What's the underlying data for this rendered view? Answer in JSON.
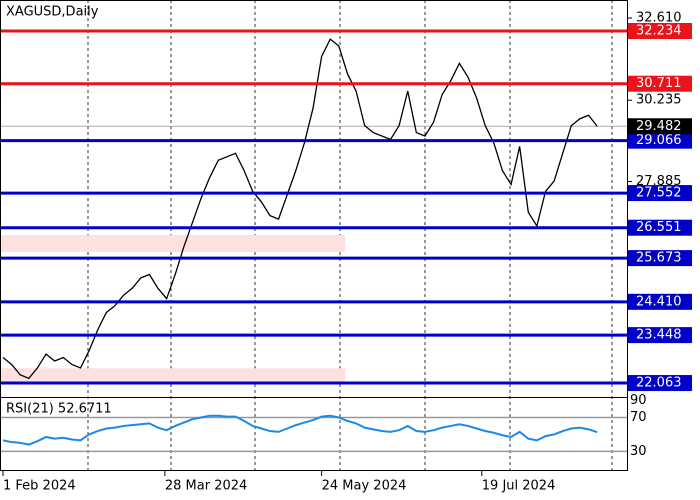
{
  "chart_data": {
    "type": "line",
    "title": "XAGUSD,Daily",
    "series": [
      {
        "name": "XAGUSD",
        "color": "#000000",
        "values": [
          22.8,
          22.6,
          22.3,
          22.2,
          22.5,
          22.9,
          22.7,
          22.8,
          22.6,
          22.5,
          23.0,
          23.6,
          24.1,
          24.3,
          24.6,
          24.8,
          25.1,
          25.2,
          24.8,
          24.5,
          25.2,
          26.0,
          26.7,
          27.4,
          28.0,
          28.5,
          28.6,
          28.7,
          28.2,
          27.6,
          27.3,
          26.9,
          26.8,
          27.5,
          28.2,
          29.0,
          30.0,
          31.5,
          32.0,
          31.8,
          31.0,
          30.5,
          29.5,
          29.3,
          29.2,
          29.1,
          29.5,
          30.5,
          29.3,
          29.2,
          29.6,
          30.4,
          30.8,
          31.3,
          30.9,
          30.3,
          29.5,
          29.0,
          28.2,
          27.8,
          28.9,
          27.0,
          26.6,
          27.6,
          27.9,
          28.7,
          29.5,
          29.7,
          29.8,
          29.482
        ]
      }
    ],
    "xlim": [
      0,
      72
    ],
    "xticks": [
      {
        "value": 0,
        "label": "1 Feb 2024"
      },
      {
        "value": 18.8,
        "label": "28 Mar 2024"
      },
      {
        "value": 37,
        "label": "24 May 2024"
      },
      {
        "value": 55.6,
        "label": "19 Jul 2024"
      }
    ],
    "ylim": [
      21.66,
      33.13
    ],
    "yticks": [
      {
        "value": 32.61,
        "label": "32.610"
      },
      30.235,
      27.885
    ],
    "levels": [
      {
        "value": 32.234,
        "label": "32.234",
        "color": "#e8141a"
      },
      {
        "value": 30.711,
        "label": "30.711",
        "color": "#e8141a"
      },
      {
        "value": 29.066,
        "label": "29.066",
        "color": "#0000c8"
      },
      {
        "value": 27.552,
        "label": "27.552",
        "color": "#0000c8"
      },
      {
        "value": 26.551,
        "label": "26.551",
        "color": "#0000c8"
      },
      {
        "value": 25.673,
        "label": "25.673",
        "color": "#0000c8"
      },
      {
        "value": 24.41,
        "label": "24.410",
        "color": "#0000c8"
      },
      {
        "value": 23.448,
        "label": "23.448",
        "color": "#0000c8"
      },
      {
        "value": 22.063,
        "label": "22.063",
        "color": "#0000c8"
      }
    ],
    "current": {
      "value": 29.482,
      "label": "29.482",
      "color": "#000000"
    },
    "zones": [
      {
        "from": 25.85,
        "to": 26.34,
        "color": "#fde0e0"
      },
      {
        "from": 22.06,
        "to": 22.49,
        "color": "#fde0e0"
      }
    ],
    "rsi": {
      "label": "RSI(21) 52.6711",
      "color": "#1e88e5",
      "ylim": [
        8,
        93
      ],
      "yticks": [
        90,
        70,
        30
      ],
      "values": [
        43,
        41,
        40,
        38,
        42,
        47,
        45,
        46,
        44,
        43,
        50,
        54,
        57,
        58,
        60,
        61,
        62,
        63,
        58,
        55,
        60,
        64,
        68,
        70,
        72,
        72,
        71,
        71,
        66,
        60,
        57,
        54,
        53,
        57,
        61,
        64,
        67,
        71,
        72,
        70,
        66,
        63,
        58,
        56,
        54,
        53,
        55,
        60,
        54,
        53,
        55,
        58,
        60,
        62,
        60,
        57,
        54,
        52,
        49,
        47,
        53,
        45,
        43,
        48,
        50,
        54,
        57,
        58,
        56,
        52.6711
      ]
    }
  }
}
